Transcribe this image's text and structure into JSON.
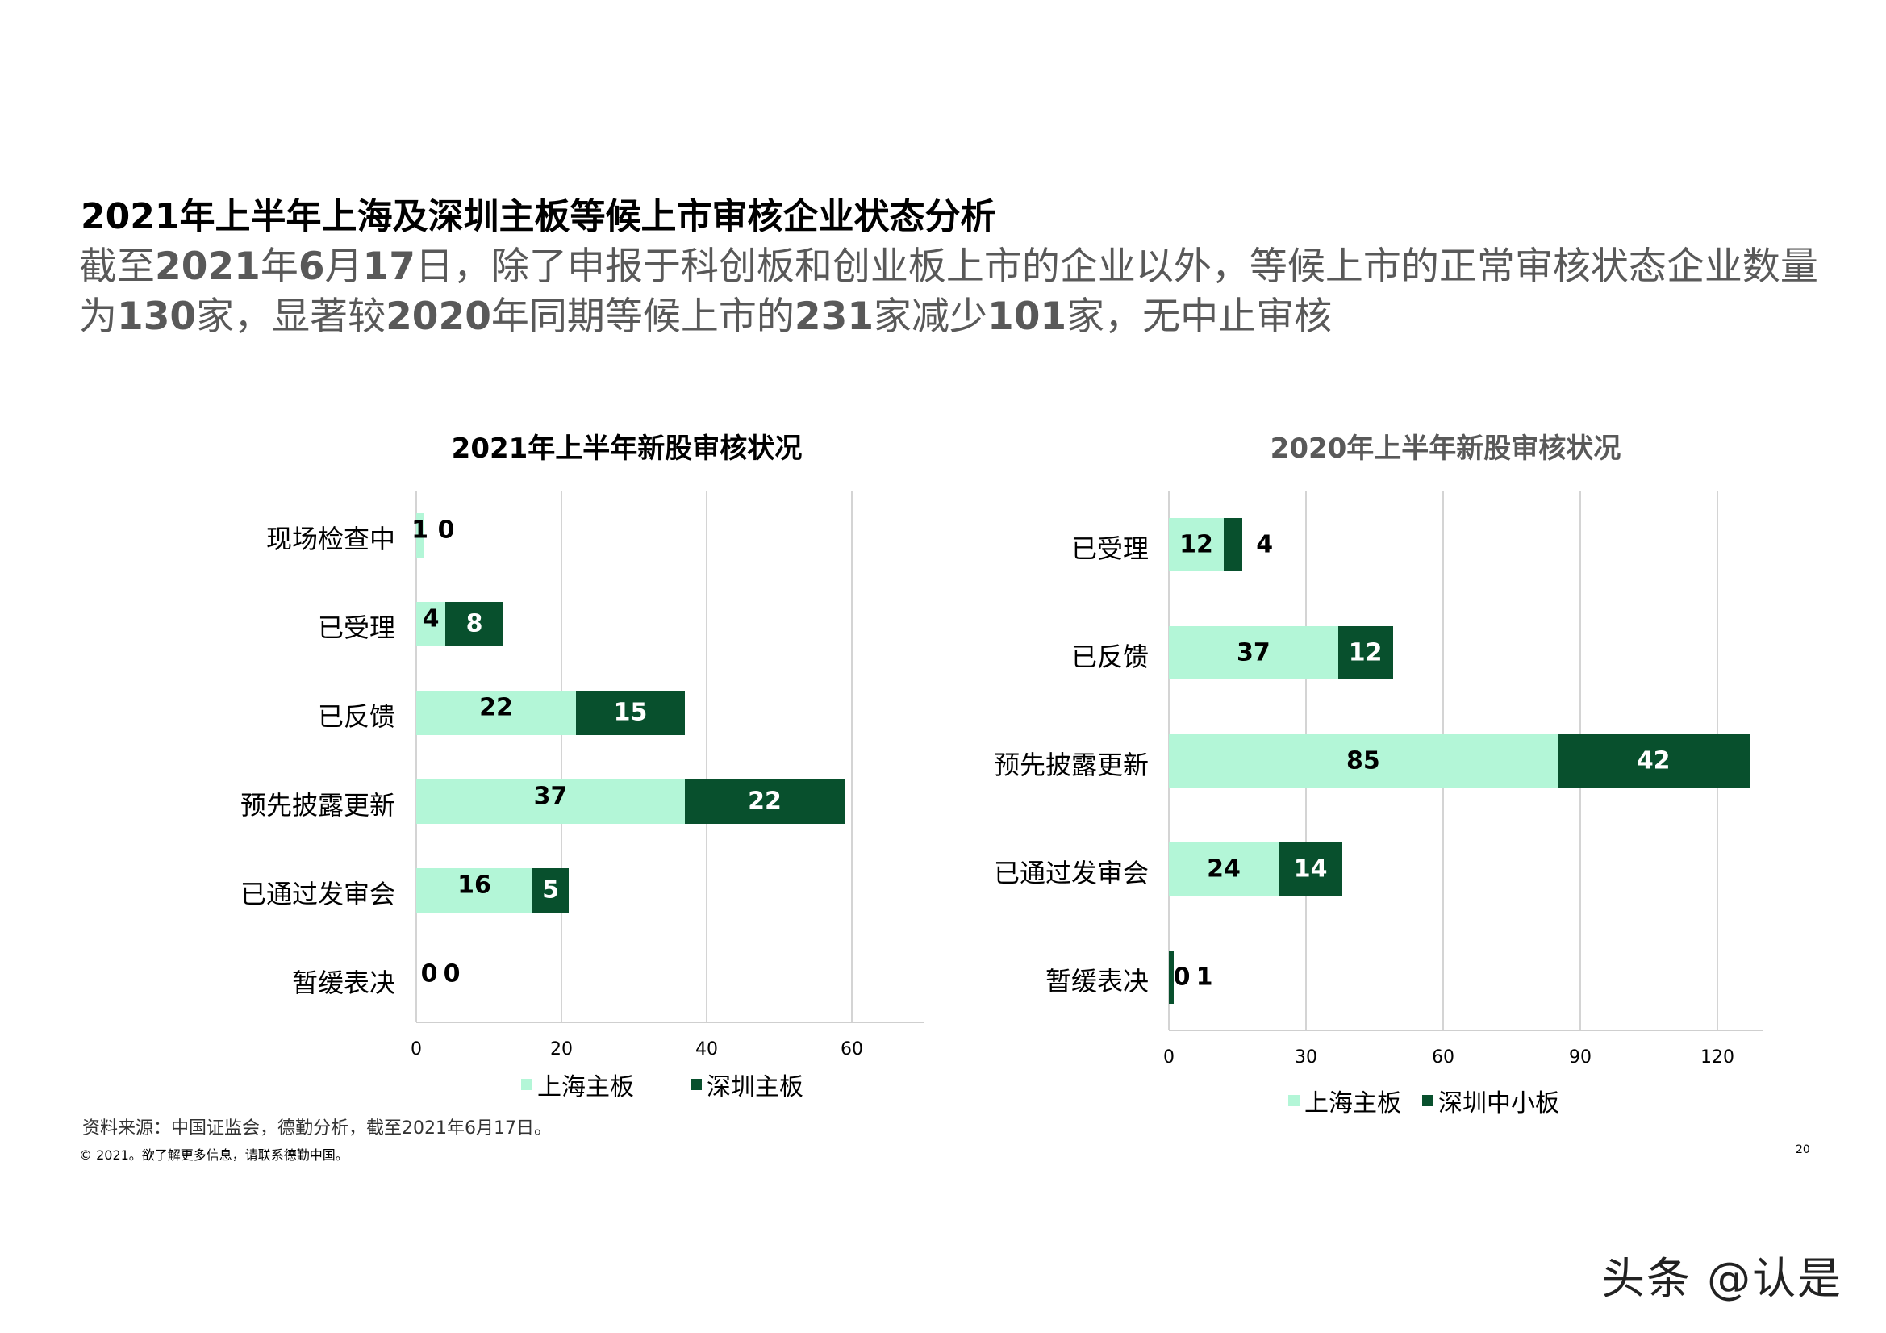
{
  "page": {
    "title": "2021年上半年上海及深圳主板等候上市审核企业状态分析",
    "subtitle_segments": [
      {
        "text": "截至",
        "bold": false
      },
      {
        "text": "2021",
        "bold": true
      },
      {
        "text": "年",
        "bold": false
      },
      {
        "text": "6",
        "bold": true
      },
      {
        "text": "月",
        "bold": false
      },
      {
        "text": "17",
        "bold": true
      },
      {
        "text": "日，除了申报于科创板和创业板上市的企业以外，等候上市的正常审核状态企业数量为",
        "bold": false
      },
      {
        "text": "130",
        "bold": true
      },
      {
        "text": "家，显著较",
        "bold": false
      },
      {
        "text": "2020",
        "bold": true
      },
      {
        "text": "年同期等候上市的",
        "bold": false
      },
      {
        "text": "231",
        "bold": true
      },
      {
        "text": "家减少",
        "bold": false
      },
      {
        "text": "101",
        "bold": true
      },
      {
        "text": "家，无中止审核",
        "bold": false
      }
    ],
    "source": "资料来源：中国证监会，德勤分析，截至2021年6月17日。",
    "copyright": "© 2021。欲了解更多信息，请联系德勤中国。",
    "page_number": "20",
    "watermark": "头条 @认是"
  },
  "colors": {
    "light_series": "#b3f6d7",
    "dark_series": "#08502d",
    "title_2021": "#000000",
    "title_2020": "#595959",
    "subtitle": "#595959"
  },
  "chart_data": [
    {
      "type": "bar",
      "orientation": "horizontal",
      "stacked": true,
      "title": "2021年上半年新股审核状况",
      "categories": [
        "现场检查中",
        "已受理",
        "已反馈",
        "预先披露更新",
        "已通过发审会",
        "暂缓表决"
      ],
      "series": [
        {
          "name": "上海主板",
          "values": [
            1,
            4,
            22,
            37,
            16,
            0
          ]
        },
        {
          "name": "深圳主板",
          "values": [
            0,
            8,
            15,
            22,
            5,
            0
          ]
        }
      ],
      "xlabel": "",
      "ylabel": "",
      "xlim": [
        0,
        70
      ],
      "xticks": [
        0,
        20,
        40,
        60
      ],
      "grid": true,
      "legend_position": "bottom"
    },
    {
      "type": "bar",
      "orientation": "horizontal",
      "stacked": true,
      "title": "2020年上半年新股审核状况",
      "categories": [
        "已受理",
        "已反馈",
        "预先披露更新",
        "已通过发审会",
        "暂缓表决"
      ],
      "series": [
        {
          "name": "上海主板",
          "values": [
            12,
            37,
            85,
            24,
            0
          ]
        },
        {
          "name": "深圳中小板",
          "values": [
            4,
            12,
            42,
            14,
            1
          ]
        }
      ],
      "xlabel": "",
      "ylabel": "",
      "xlim": [
        0,
        130
      ],
      "xticks": [
        0,
        30,
        60,
        90,
        120
      ],
      "grid": true,
      "legend_position": "bottom"
    }
  ]
}
